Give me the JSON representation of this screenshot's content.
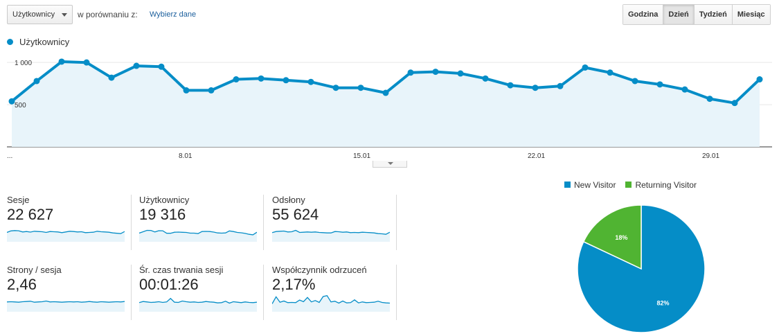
{
  "toolbar": {
    "metric_select": "Użytkownicy",
    "compare_label": "w porównaniu z:",
    "compare_link": "Wybierz dane",
    "periods": [
      {
        "label": "Godzina",
        "active": false
      },
      {
        "label": "Dzień",
        "active": true
      },
      {
        "label": "Tydzień",
        "active": false
      },
      {
        "label": "Miesiąc",
        "active": false
      }
    ]
  },
  "chart_data": [
    {
      "type": "area",
      "series": [
        {
          "name": "Użytkownicy",
          "color": "#058dc7",
          "values": [
            540,
            780,
            1010,
            1000,
            820,
            960,
            950,
            670,
            670,
            800,
            810,
            790,
            770,
            700,
            700,
            640,
            880,
            890,
            870,
            810,
            730,
            700,
            720,
            940,
            880,
            780,
            740,
            680,
            570,
            520,
            800
          ]
        }
      ],
      "x_tick_labels": [
        "...",
        "8.01",
        "15.01",
        "22.01",
        "29.01"
      ],
      "x_tick_index": [
        0,
        7,
        14,
        21,
        28
      ],
      "y_tick_labels": [
        "1 000",
        "500"
      ],
      "y_tick_values": [
        1000,
        500
      ],
      "ylim": [
        0,
        1100
      ],
      "grid": true
    },
    {
      "type": "pie",
      "series": [
        {
          "name": "New Visitor",
          "value": 82,
          "label": "82%",
          "color": "#058dc7"
        },
        {
          "name": "Returning Visitor",
          "value": 18,
          "label": "18%",
          "color": "#50b432"
        }
      ],
      "legend_position": "top"
    }
  ],
  "metrics": [
    {
      "label": "Sesje",
      "value": "22 627",
      "spark": [
        62,
        75,
        78,
        76,
        66,
        70,
        65,
        72,
        70,
        68,
        62,
        70,
        68,
        66,
        60,
        66,
        72,
        70,
        66,
        68,
        60,
        62,
        64,
        72,
        68,
        66,
        64,
        58,
        55,
        52,
        70
      ]
    },
    {
      "label": "Użytkownicy",
      "value": "19 316",
      "spark": [
        56,
        68,
        80,
        79,
        66,
        77,
        76,
        55,
        55,
        64,
        65,
        63,
        62,
        56,
        56,
        52,
        70,
        71,
        70,
        65,
        58,
        56,
        58,
        75,
        70,
        62,
        59,
        54,
        46,
        42,
        64
      ]
    },
    {
      "label": "Odsłony",
      "value": "55 624",
      "spark": [
        60,
        70,
        72,
        74,
        66,
        68,
        80,
        62,
        64,
        66,
        64,
        66,
        62,
        60,
        58,
        58,
        70,
        68,
        64,
        66,
        60,
        62,
        60,
        64,
        62,
        60,
        58,
        52,
        50,
        46,
        64
      ]
    },
    {
      "label": "Strony / sesja",
      "value": "2,46",
      "spark": [
        66,
        68,
        66,
        64,
        68,
        70,
        72,
        64,
        66,
        68,
        74,
        66,
        68,
        66,
        64,
        66,
        68,
        66,
        68,
        64,
        66,
        70,
        66,
        64,
        68,
        66,
        64,
        66,
        68,
        66,
        70
      ]
    },
    {
      "label": "Śr. czas trwania sesji",
      "value": "00:01:26",
      "spark": [
        60,
        70,
        66,
        62,
        64,
        68,
        62,
        66,
        96,
        64,
        62,
        74,
        68,
        64,
        66,
        62,
        64,
        70,
        66,
        64,
        58,
        60,
        72,
        56,
        68,
        64,
        60,
        66,
        62,
        60,
        64
      ]
    },
    {
      "label": "Współczynnik odrzuceń",
      "value": "2,17%",
      "spark": [
        50,
        110,
        64,
        74,
        60,
        62,
        60,
        82,
        68,
        104,
        66,
        78,
        62,
        112,
        120,
        66,
        72,
        56,
        74,
        58,
        60,
        84,
        58,
        66,
        60,
        62,
        64,
        72,
        62,
        58,
        56
      ]
    }
  ]
}
